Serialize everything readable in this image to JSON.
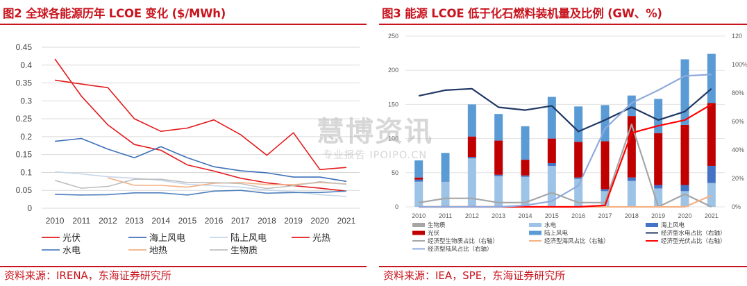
{
  "left": {
    "title": "图2  全球各能源历年 LCOE 变化 ($/MWh)",
    "source": "资料来源：IRENA，东海证券研究所",
    "chart_data": {
      "type": "line",
      "x": [
        "2010",
        "2011",
        "2012",
        "2013",
        "2014",
        "2015",
        "2016",
        "2017",
        "2018",
        "2019",
        "2020",
        "2021"
      ],
      "ylim": [
        0,
        0.45
      ],
      "yticks": [
        "0",
        "0.05",
        "0.1",
        "0.15",
        "0.2",
        "0.25",
        "0.3",
        "0.35",
        "0.4",
        "0.45"
      ],
      "grid": true,
      "legend_position": "bottom",
      "series": [
        {
          "name": "光伏",
          "color": "#e31a1c",
          "values": [
            0.417,
            0.313,
            0.233,
            0.178,
            0.162,
            0.121,
            0.104,
            0.084,
            0.071,
            0.063,
            0.056,
            0.048
          ]
        },
        {
          "name": "海上风电",
          "color": "#3d70b8",
          "values": [
            0.187,
            0.195,
            0.165,
            0.141,
            0.172,
            0.141,
            0.116,
            0.105,
            0.099,
            0.087,
            0.087,
            0.075
          ]
        },
        {
          "name": "陆上风电",
          "color": "#c6d6ea",
          "values": [
            0.102,
            0.096,
            0.088,
            0.084,
            0.078,
            0.067,
            0.063,
            0.059,
            0.051,
            0.046,
            0.038,
            0.033
          ]
        },
        {
          "name": "光热",
          "color": "#e31a1c",
          "values": [
            0.358,
            0.347,
            0.337,
            0.25,
            0.215,
            0.224,
            0.247,
            0.206,
            0.148,
            0.211,
            0.108,
            0.114
          ]
        },
        {
          "name": "水电",
          "color": "#4f81bd",
          "values": [
            0.039,
            0.037,
            0.038,
            0.043,
            0.043,
            0.037,
            0.048,
            0.05,
            0.042,
            0.044,
            0.044,
            0.048
          ]
        },
        {
          "name": "地热",
          "color": "#f4b183",
          "values": [
            null,
            null,
            0.085,
            0.064,
            0.064,
            0.059,
            0.07,
            0.072,
            0.066,
            0.066,
            0.072,
            0.068
          ]
        },
        {
          "name": "生物质",
          "color": "#bfbfbf",
          "values": [
            0.078,
            0.056,
            0.061,
            0.081,
            0.081,
            0.072,
            0.072,
            0.069,
            0.055,
            0.063,
            0.074,
            0.067
          ]
        }
      ]
    }
  },
  "right": {
    "title": "图3  能源 LCOE 低于化石燃料装机量及比例 (GW、%)",
    "source": "资料来源：IEA，SPE，东海证券研究所",
    "chart_data": {
      "type": "bar",
      "x": [
        "2010",
        "2011",
        "2012",
        "2013",
        "2014",
        "2015",
        "2016",
        "2017",
        "2018",
        "2019",
        "2020",
        "2021"
      ],
      "ylim": [
        0,
        250
      ],
      "yticks": [
        "0",
        "50",
        "100",
        "150",
        "200",
        "250"
      ],
      "y2lim": [
        0,
        120
      ],
      "y2ticks": [
        "0%",
        "20%",
        "40%",
        "60%",
        "80%",
        "100%",
        "120%"
      ],
      "y2max_label": "120",
      "stacked_series": [
        {
          "name": "生物质",
          "color": "#a6a6a6",
          "values": [
            0,
            0,
            0,
            0,
            0,
            0,
            0,
            0,
            0,
            0,
            0,
            0
          ]
        },
        {
          "name": "水电",
          "color": "#9dc3e6",
          "values": [
            37,
            37,
            71,
            45,
            44,
            60,
            41,
            23,
            38,
            27,
            23,
            35
          ]
        },
        {
          "name": "海上风电",
          "color": "#4472c4",
          "values": [
            3,
            1,
            2,
            2,
            2,
            4,
            2,
            3,
            5,
            5,
            9,
            25
          ]
        },
        {
          "name": "光伏",
          "color": "#c00000",
          "values": [
            3,
            0,
            30,
            50,
            23,
            36,
            52,
            70,
            90,
            76,
            88,
            92
          ]
        },
        {
          "name": "陆上风电",
          "color": "#5b9bd5",
          "values": [
            25,
            41,
            47,
            39,
            49,
            61,
            52,
            53,
            30,
            50,
            96,
            72
          ]
        }
      ],
      "line_series_right_axis": [
        {
          "name": "经济型水电占比（右轴）",
          "color": "#203864",
          "values": [
            78,
            82,
            83,
            70,
            68,
            71,
            53,
            61,
            70,
            61,
            67,
            83
          ]
        },
        {
          "name": "经济型生物质占比（右轴）",
          "color": "#a6a6a6",
          "values": [
            3,
            6,
            6,
            3,
            3,
            10,
            3,
            3,
            58,
            0,
            9,
            0
          ]
        },
        {
          "name": "经济型海风占比（右轴）",
          "color": "#f4b183",
          "values": [
            0,
            0,
            0,
            0,
            0,
            0,
            0,
            0,
            0,
            0,
            0,
            8
          ]
        },
        {
          "name": "经济型光伏占比（右轴）",
          "color": "#ff0000",
          "values": [
            0,
            0,
            0,
            0,
            0,
            0,
            0,
            1,
            52,
            57,
            61,
            72
          ]
        },
        {
          "name": "经济型陆风占比（右轴）",
          "color": "#8faadc",
          "values": [
            0,
            0,
            0,
            0,
            1,
            4,
            15,
            55,
            73,
            82,
            92,
            93
          ]
        }
      ],
      "legend_order": [
        "生物质",
        "水电",
        "海上风电",
        "光伏",
        "陆上风电",
        "经济型水电占比（右轴）",
        "经济型生物质占比（右轴）",
        "经济型海风占比（右轴）",
        "经济型光伏占比（右轴）",
        "经济型陆风占比（右轴）"
      ],
      "legend_position": "bottom",
      "grid": true
    }
  },
  "watermark": {
    "line1": "慧博资讯",
    "line2": "专业报告 IPOIPO.CN"
  }
}
